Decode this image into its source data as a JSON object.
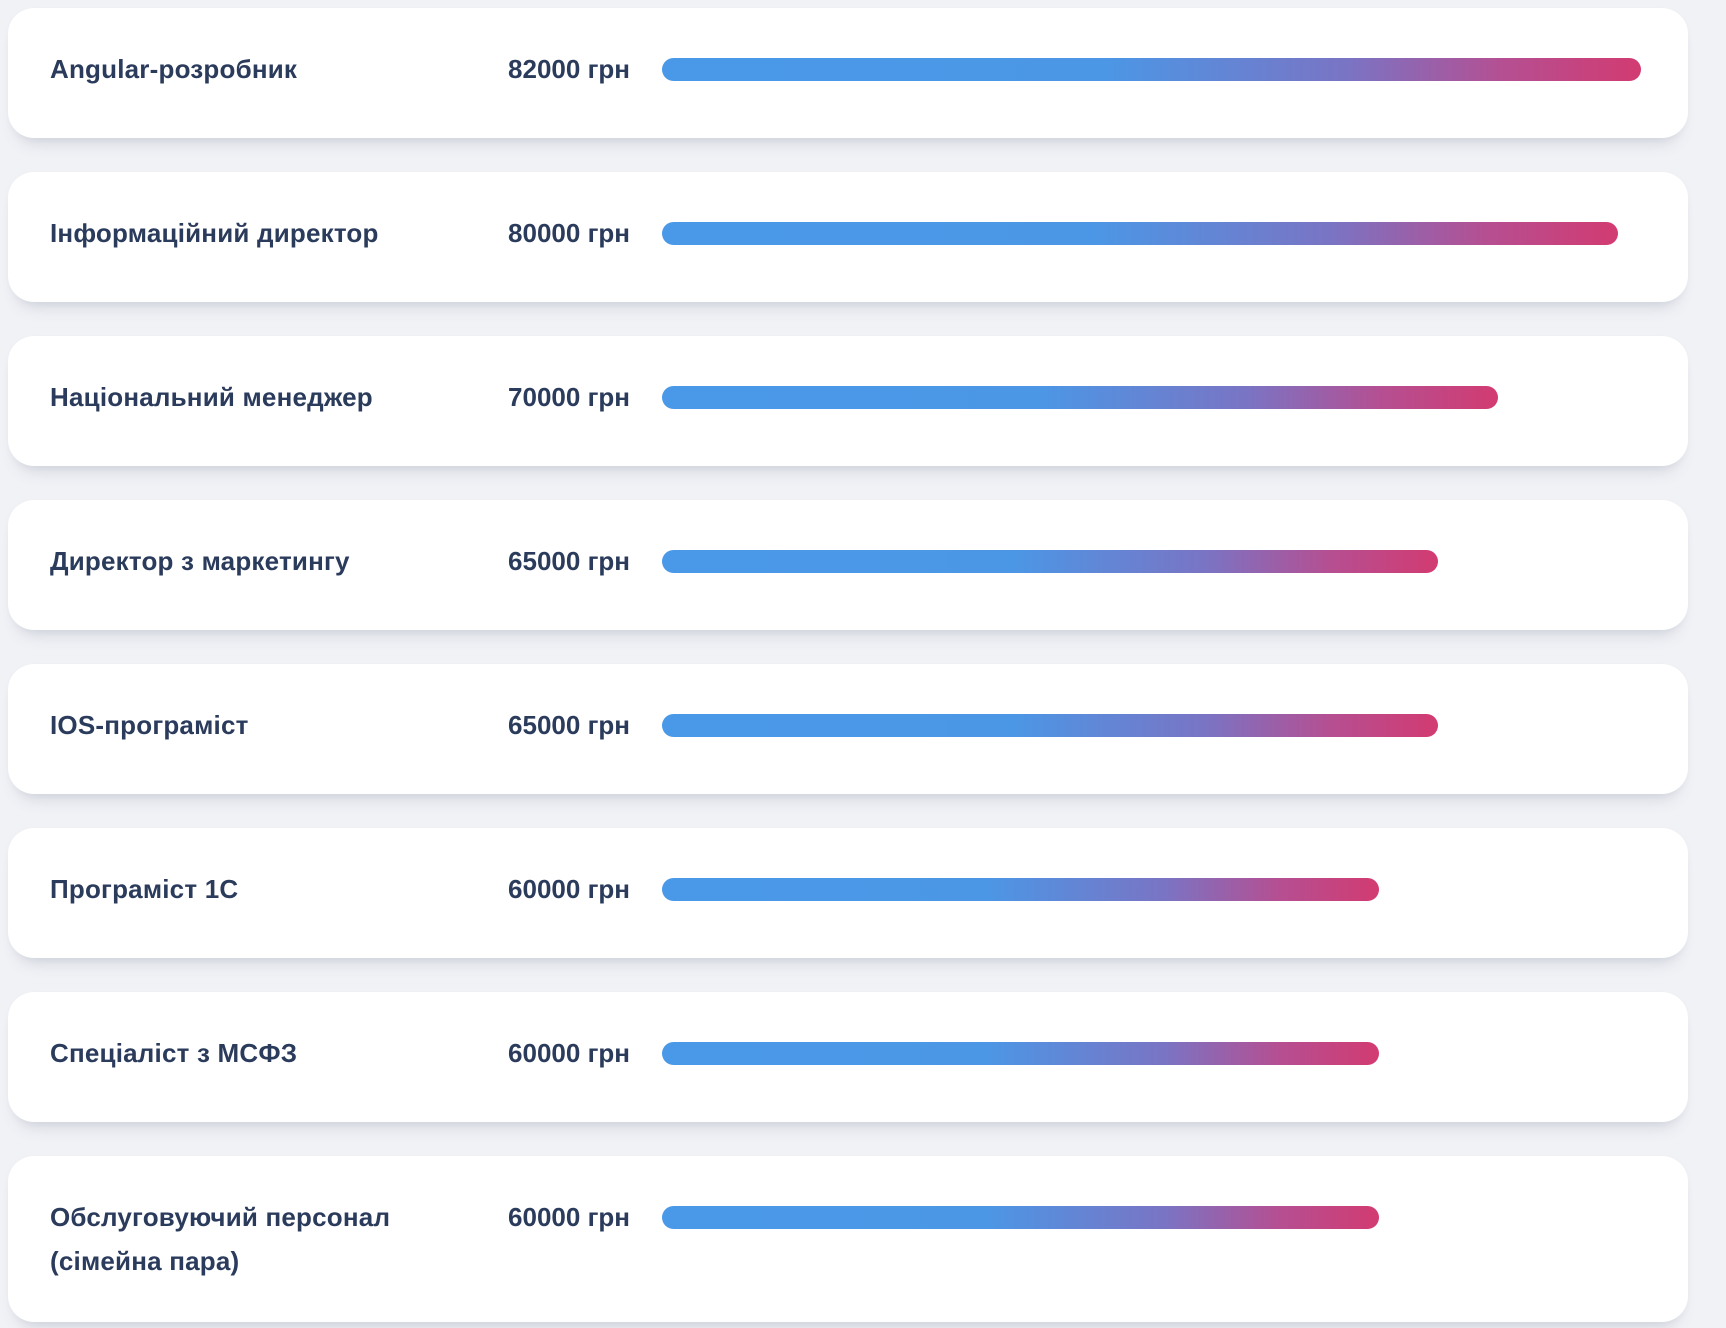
{
  "page": {
    "background_color": "#f1f2f6",
    "card_color": "#ffffff",
    "text_color": "#2b3b5c",
    "bar_gradient_start": "#4a99e8",
    "bar_gradient_mid": "#7a74c4",
    "bar_gradient_end": "#d23b71",
    "currency_unit": "грн"
  },
  "chart_data": {
    "type": "bar",
    "orientation": "horizontal",
    "title": "",
    "xlabel": "",
    "ylabel": "",
    "unit": "грн",
    "axis_max": 82000,
    "grid": false,
    "legend": false,
    "categories": [
      "Angular-розробник",
      "Інформаційний директор",
      "Національний менеджер",
      "Директор з маркетингу",
      "IOS-програміст",
      "Програміст 1С",
      "Спеціаліст з МСФЗ",
      "Обслуговуючий персонал (сімейна пара)"
    ],
    "values": [
      82000,
      80000,
      70000,
      65000,
      65000,
      60000,
      60000,
      60000
    ],
    "value_labels": [
      "82000 грн",
      "80000 грн",
      "70000 грн",
      "65000 грн",
      "65000 грн",
      "60000 грн",
      "60000 грн",
      "60000 грн"
    ]
  },
  "rows": [
    {
      "label": "Angular-розробник",
      "value_label": "82000 грн",
      "value": 82000,
      "bar_css": "width:100%"
    },
    {
      "label": "Інформаційний директор",
      "value_label": "80000 грн",
      "value": 80000,
      "bar_css": "width:97.6%"
    },
    {
      "label": "Національний менеджер",
      "value_label": "70000 грн",
      "value": 70000,
      "bar_css": "width:85.4%"
    },
    {
      "label": "Директор з маркетингу",
      "value_label": "65000 грн",
      "value": 65000,
      "bar_css": "width:79.3%"
    },
    {
      "label": "IOS-програміст",
      "value_label": "65000 грн",
      "value": 65000,
      "bar_css": "width:79.3%"
    },
    {
      "label": "Програміст 1С",
      "value_label": "60000 грн",
      "value": 60000,
      "bar_css": "width:73.2%"
    },
    {
      "label": "Спеціаліст з МСФЗ",
      "value_label": "60000 грн",
      "value": 60000,
      "bar_css": "width:73.2%"
    },
    {
      "label": "Обслуговуючий персонал (сімейна пара)",
      "value_label": "60000 грн",
      "value": 60000,
      "bar_css": "width:73.2%"
    }
  ]
}
